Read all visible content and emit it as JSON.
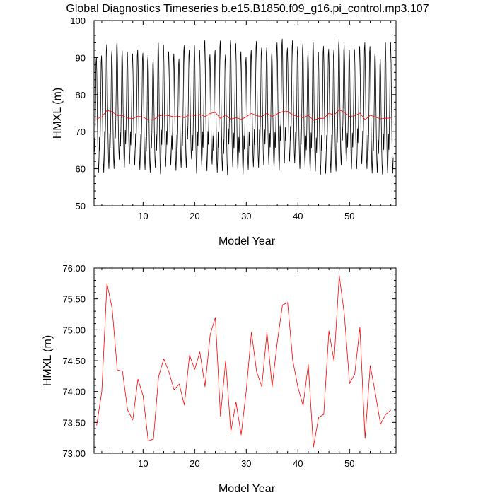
{
  "chart_data": [
    {
      "type": "line",
      "title": "Global Diagnostics Timeseries b.e15.B1850.f09_g16.pi_control.mp3.107",
      "xlabel": "Model Year",
      "ylabel": "HMXL (m)",
      "xlim": [
        0.5,
        59
      ],
      "ylim": [
        50,
        100
      ],
      "xticks": [
        10,
        20,
        30,
        40,
        50
      ],
      "yticks": [
        50,
        60,
        70,
        80,
        90,
        100
      ],
      "xtick_labels": [
        "10",
        "20",
        "30",
        "40",
        "50"
      ],
      "ytick_labels": [
        "50",
        "60",
        "70",
        "80",
        "90",
        "100"
      ],
      "grid": false,
      "series": [
        {
          "color": "#000000",
          "style": "monthly",
          "start_year": 0.5,
          "maxima": [
            90.2,
            90.5,
            93.5,
            91.8,
            94.5,
            91.8,
            91.5,
            91.0,
            92.1,
            91.2,
            90.6,
            89.5,
            93.9,
            93.4,
            91.6,
            91.0,
            89.6,
            93.2,
            92.1,
            93.2,
            92.0,
            94.7,
            90.8,
            92.0,
            94.5,
            90.7,
            94.8,
            93.8,
            91.6,
            90.2,
            92.0,
            94.4,
            92.6,
            92.7,
            91.7,
            94.0,
            95.0,
            92.6,
            94.6,
            93.0,
            93.8,
            91.3,
            94.0,
            91.5,
            93.1,
            92.3,
            92.0,
            94.9,
            93.4,
            92.0,
            92.2,
            93.0,
            94.0,
            93.0,
            91.6,
            89.5,
            94.0,
            94.0
          ],
          "minima": [
            59.0,
            59.0,
            60.0,
            60.0,
            62.5,
            60.4,
            61.3,
            61.0,
            59.8,
            59.8,
            59.0,
            60.3,
            58.6,
            60.6,
            61.0,
            59.5,
            60.3,
            60.3,
            62.7,
            58.7,
            60.5,
            59.4,
            61.2,
            59.0,
            59.4,
            58.2,
            60.5,
            59.3,
            58.5,
            59.8,
            60.5,
            60.3,
            61.0,
            61.0,
            60.1,
            59.5,
            61.5,
            62.0,
            61.5,
            60.0,
            60.6,
            59.3,
            59.3,
            58.4,
            58.7,
            59.0,
            59.3,
            61.0,
            62.0,
            60.0,
            60.0,
            61.3,
            60.0,
            58.8,
            59.0,
            58.5,
            58.8,
            58.8
          ]
        },
        {
          "color": "#ff0000",
          "x": [
            1,
            2,
            3,
            4,
            5,
            6,
            7,
            8,
            9,
            10,
            11,
            12,
            13,
            14,
            15,
            16,
            17,
            18,
            19,
            20,
            21,
            22,
            23,
            24,
            25,
            26,
            27,
            28,
            29,
            30,
            31,
            32,
            33,
            34,
            35,
            36,
            37,
            38,
            39,
            40,
            41,
            42,
            43,
            44,
            45,
            46,
            47,
            48,
            49,
            50,
            51,
            52,
            53,
            54,
            55,
            56,
            57,
            58
          ],
          "values": [
            73.45,
            74.0,
            75.75,
            75.35,
            74.35,
            74.33,
            73.7,
            73.54,
            74.2,
            73.93,
            73.2,
            73.23,
            74.24,
            74.53,
            74.32,
            74.03,
            74.12,
            73.78,
            74.59,
            74.36,
            74.64,
            74.08,
            74.92,
            75.2,
            73.6,
            74.5,
            73.35,
            73.83,
            73.3,
            74.02,
            74.96,
            74.32,
            74.08,
            74.96,
            74.08,
            74.8,
            75.4,
            75.44,
            74.5,
            74.07,
            73.77,
            74.44,
            73.1,
            73.58,
            73.63,
            74.98,
            74.49,
            75.88,
            75.24,
            74.13,
            74.28,
            75.04,
            73.24,
            74.42,
            73.97,
            73.47,
            73.63,
            73.7
          ]
        }
      ]
    },
    {
      "type": "line",
      "title": "",
      "xlabel": "Model Year",
      "ylabel": "HMXL (m)",
      "xlim": [
        0.5,
        59
      ],
      "ylim": [
        73,
        76
      ],
      "xticks": [
        10,
        20,
        30,
        40,
        50
      ],
      "yticks": [
        73,
        73.5,
        74,
        74.5,
        75,
        75.5,
        76
      ],
      "xtick_labels": [
        "10",
        "20",
        "30",
        "40",
        "50"
      ],
      "ytick_labels": [
        "73.00",
        "73.50",
        "74.00",
        "74.50",
        "75.00",
        "75.50",
        "76.00"
      ],
      "grid": false,
      "series": [
        {
          "color": "#ff0000",
          "x": [
            1,
            2,
            3,
            4,
            5,
            6,
            7,
            8,
            9,
            10,
            11,
            12,
            13,
            14,
            15,
            16,
            17,
            18,
            19,
            20,
            21,
            22,
            23,
            24,
            25,
            26,
            27,
            28,
            29,
            30,
            31,
            32,
            33,
            34,
            35,
            36,
            37,
            38,
            39,
            40,
            41,
            42,
            43,
            44,
            45,
            46,
            47,
            48,
            49,
            50,
            51,
            52,
            53,
            54,
            55,
            56,
            57,
            58
          ],
          "values": [
            73.45,
            74.0,
            75.75,
            75.35,
            74.35,
            74.33,
            73.7,
            73.54,
            74.2,
            73.93,
            73.2,
            73.23,
            74.24,
            74.53,
            74.32,
            74.03,
            74.12,
            73.78,
            74.59,
            74.36,
            74.64,
            74.08,
            74.92,
            75.2,
            73.6,
            74.5,
            73.35,
            73.83,
            73.3,
            74.02,
            74.96,
            74.32,
            74.08,
            74.96,
            74.08,
            74.8,
            75.4,
            75.44,
            74.5,
            74.07,
            73.77,
            74.44,
            73.1,
            73.58,
            73.63,
            74.98,
            74.49,
            75.88,
            75.24,
            74.13,
            74.28,
            75.04,
            73.24,
            74.42,
            73.97,
            73.47,
            73.63,
            73.7
          ]
        }
      ]
    }
  ]
}
